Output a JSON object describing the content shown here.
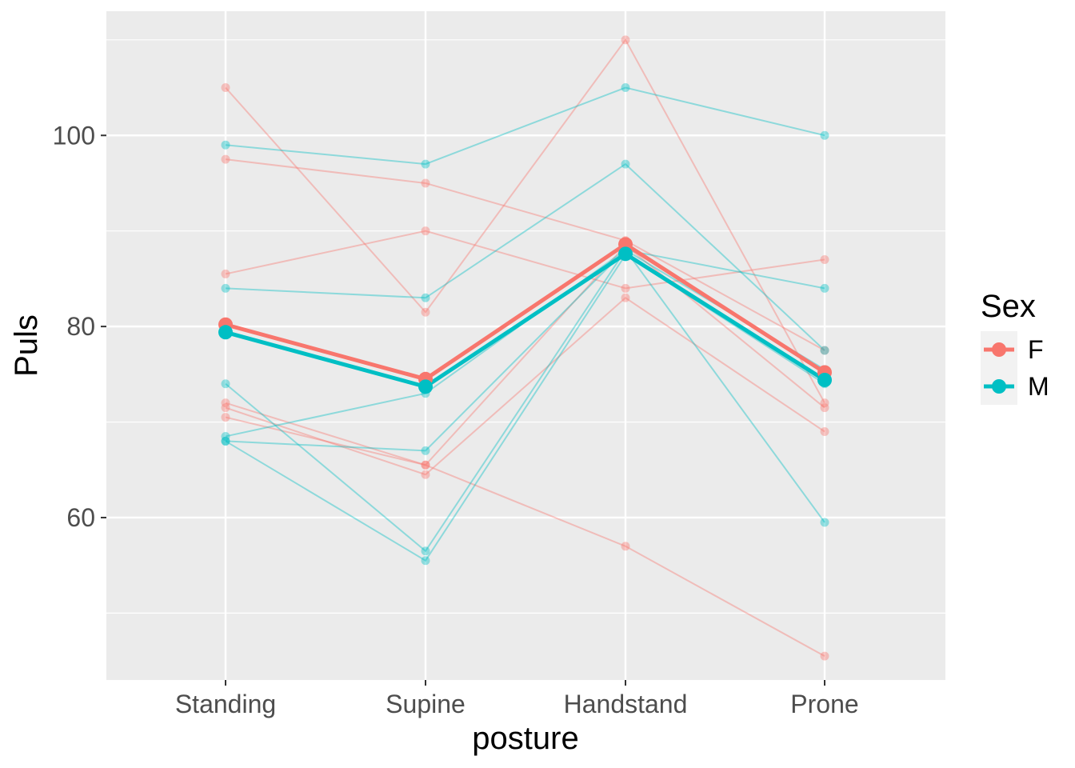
{
  "chart_data": {
    "type": "line",
    "title": "",
    "xlabel": "posture",
    "ylabel": "Puls",
    "categories": [
      "Standing",
      "Supine",
      "Handstand",
      "Prone"
    ],
    "ylim": [
      43,
      113
    ],
    "yticks": [
      60,
      80,
      100
    ],
    "grid": true,
    "legend": {
      "title": "Sex",
      "position": "right",
      "entries": [
        {
          "label": "F",
          "color": "#F8766D"
        },
        {
          "label": "M",
          "color": "#00BFC4"
        }
      ]
    },
    "colors": {
      "F": "#F8766D",
      "M": "#00BFC4",
      "panel": "#EBEBEB",
      "grid": "#FFFFFF"
    },
    "individual_series": [
      {
        "group": "F",
        "values": [
          105,
          81.5,
          110,
          72
        ]
      },
      {
        "group": "F",
        "values": [
          97.5,
          95,
          89,
          77.5
        ]
      },
      {
        "group": "F",
        "values": [
          85.5,
          90,
          84,
          87
        ]
      },
      {
        "group": "F",
        "values": [
          72,
          65.5,
          57,
          45.5
        ]
      },
      {
        "group": "F",
        "values": [
          71.5,
          64.5,
          83,
          69
        ]
      },
      {
        "group": "F",
        "values": [
          70.5,
          65.5,
          88.5,
          71.5
        ]
      },
      {
        "group": "M",
        "values": [
          99,
          97,
          105,
          100
        ]
      },
      {
        "group": "M",
        "values": [
          84,
          83,
          97,
          77.5
        ]
      },
      {
        "group": "M",
        "values": [
          74,
          56.5,
          88,
          84
        ]
      },
      {
        "group": "M",
        "values": [
          68.5,
          73,
          88,
          59.5
        ]
      },
      {
        "group": "M",
        "values": [
          68,
          67,
          88,
          75.5
        ]
      },
      {
        "group": "M",
        "values": [
          68,
          55.5,
          87.5,
          74
        ]
      }
    ],
    "series": [
      {
        "name": "F",
        "values": [
          80.2,
          74.5,
          88.6,
          75.2
        ]
      },
      {
        "name": "M",
        "values": [
          79.4,
          73.7,
          87.6,
          74.4
        ]
      }
    ]
  }
}
